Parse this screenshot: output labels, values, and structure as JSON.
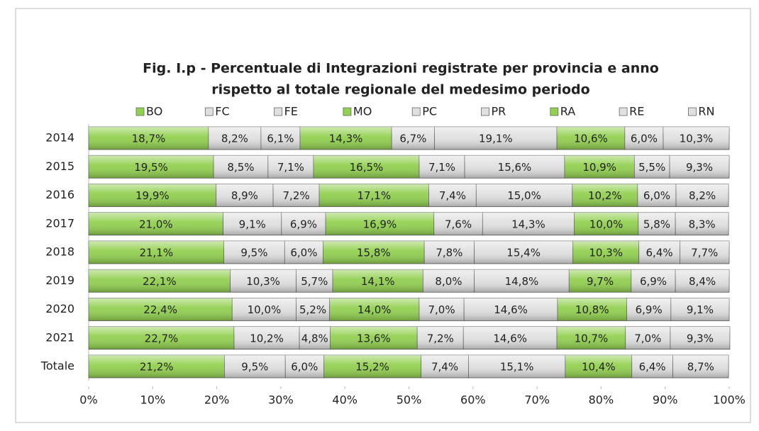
{
  "chart_data": {
    "type": "bar",
    "orientation": "horizontal",
    "stacked": true,
    "title": [
      "Fig. I.p - Percentuale di Integrazioni registrate per provincia e anno",
      "rispetto al totale regionale del medesimo periodo"
    ],
    "categories": [
      "2014",
      "2015",
      "2016",
      "2017",
      "2018",
      "2019",
      "2020",
      "2021",
      "Totale"
    ],
    "xlim": [
      0,
      100
    ],
    "xticks": [
      {
        "value": 0,
        "label": "0%"
      },
      {
        "value": 10,
        "label": "10%"
      },
      {
        "value": 20,
        "label": "20%"
      },
      {
        "value": 30,
        "label": "30%"
      },
      {
        "value": 40,
        "label": "40%"
      },
      {
        "value": 50,
        "label": "50%"
      },
      {
        "value": 60,
        "label": "60%"
      },
      {
        "value": 70,
        "label": "70%"
      },
      {
        "value": 80,
        "label": "80%"
      },
      {
        "value": 90,
        "label": "90%"
      },
      {
        "value": 100,
        "label": "100%"
      }
    ],
    "legend": "top",
    "series": [
      {
        "name": "BO",
        "color": "#92d050",
        "values": [
          18.7,
          19.5,
          19.9,
          21.0,
          21.1,
          22.1,
          22.4,
          22.7,
          21.2
        ],
        "value_labels": [
          "18,7%",
          "19,5%",
          "19,9%",
          "21,0%",
          "21,1%",
          "22,1%",
          "22,4%",
          "22,7%",
          "21,2%"
        ]
      },
      {
        "name": "FC",
        "color": "#e0e0e0",
        "values": [
          8.2,
          8.5,
          8.9,
          9.1,
          9.5,
          10.3,
          10.0,
          10.2,
          9.5
        ],
        "value_labels": [
          "8,2%",
          "8,5%",
          "8,9%",
          "9,1%",
          "9,5%",
          "10,3%",
          "10,0%",
          "10,2%",
          "9,5%"
        ]
      },
      {
        "name": "FE",
        "color": "#e0e0e0",
        "values": [
          6.1,
          7.1,
          7.2,
          6.9,
          6.0,
          5.7,
          5.2,
          4.8,
          6.0
        ],
        "value_labels": [
          "6,1%",
          "7,1%",
          "7,2%",
          "6,9%",
          "6,0%",
          "5,7%",
          "5,2%",
          "4,8%",
          "6,0%"
        ]
      },
      {
        "name": "MO",
        "color": "#92d050",
        "values": [
          14.3,
          16.5,
          17.1,
          16.9,
          15.8,
          14.1,
          14.0,
          13.6,
          15.2
        ],
        "value_labels": [
          "14,3%",
          "16,5%",
          "17,1%",
          "16,9%",
          "15,8%",
          "14,1%",
          "14,0%",
          "13,6%",
          "15,2%"
        ]
      },
      {
        "name": "PC",
        "color": "#e0e0e0",
        "values": [
          6.7,
          7.1,
          7.4,
          7.6,
          7.8,
          8.0,
          7.0,
          7.2,
          7.4
        ],
        "value_labels": [
          "6,7%",
          "7,1%",
          "7,4%",
          "7,6%",
          "7,8%",
          "8,0%",
          "7,0%",
          "7,2%",
          "7,4%"
        ]
      },
      {
        "name": "PR",
        "color": "#e0e0e0",
        "values": [
          19.1,
          15.6,
          15.0,
          14.3,
          15.4,
          14.8,
          14.6,
          14.6,
          15.1
        ],
        "value_labels": [
          "19,1%",
          "15,6%",
          "15,0%",
          "14,3%",
          "15,4%",
          "14,8%",
          "14,6%",
          "14,6%",
          "15,1%"
        ]
      },
      {
        "name": "RA",
        "color": "#92d050",
        "values": [
          10.6,
          10.9,
          10.2,
          10.0,
          10.3,
          9.7,
          10.8,
          10.7,
          10.4
        ],
        "value_labels": [
          "10,6%",
          "10,9%",
          "10,2%",
          "10,0%",
          "10,3%",
          "9,7%",
          "10,8%",
          "10,7%",
          "10,4%"
        ]
      },
      {
        "name": "RE",
        "color": "#e0e0e0",
        "values": [
          6.0,
          5.5,
          6.0,
          5.8,
          6.4,
          6.9,
          6.9,
          7.0,
          6.4
        ],
        "value_labels": [
          "6,0%",
          "5,5%",
          "6,0%",
          "5,8%",
          "6,4%",
          "6,9%",
          "6,9%",
          "7,0%",
          "6,4%"
        ]
      },
      {
        "name": "RN",
        "color": "#e0e0e0",
        "values": [
          10.3,
          9.3,
          8.2,
          8.3,
          7.7,
          8.4,
          9.1,
          9.3,
          8.7
        ],
        "value_labels": [
          "10,3%",
          "9,3%",
          "8,2%",
          "8,3%",
          "7,7%",
          "8,4%",
          "9,1%",
          "9,3%",
          "8,7%"
        ]
      }
    ]
  }
}
